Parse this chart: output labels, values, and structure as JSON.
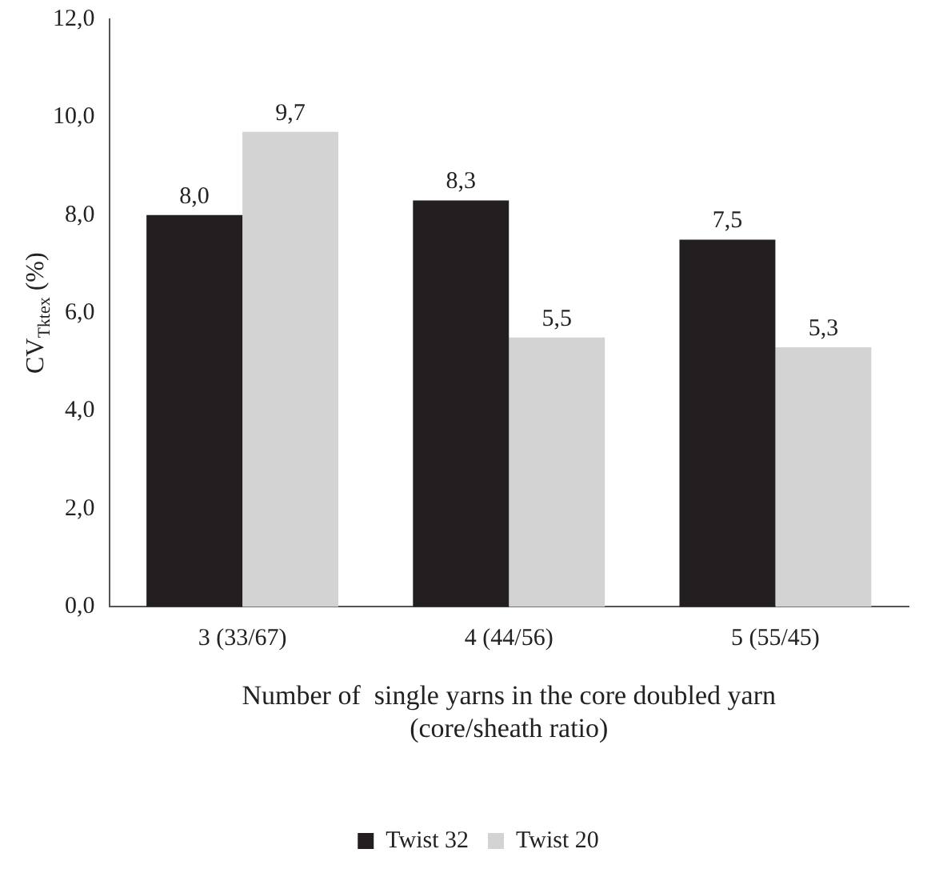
{
  "chart_data": {
    "type": "bar",
    "ylabel": "CV$_{Tktex}$ (%)",
    "xlabel": "Number of  single yarns in the core doubled yarn\n(core/sheath ratio)",
    "categories": [
      "3 (33/67)",
      "4 (44/56)",
      "5 (55/45)"
    ],
    "series": [
      {
        "name": "Twist 32",
        "color": "#231f20",
        "values": [
          8.0,
          8.3,
          7.5
        ],
        "value_labels": [
          "8,0",
          "8,3",
          "7,5"
        ]
      },
      {
        "name": "Twist 20",
        "color": "#d3d3d3",
        "values": [
          9.7,
          5.5,
          5.3
        ],
        "value_labels": [
          "9,7",
          "5,5",
          "5,3"
        ]
      }
    ],
    "ylim": [
      0,
      12
    ],
    "yticks": [
      {
        "value": 0,
        "label": "0,0"
      },
      {
        "value": 2,
        "label": "2,0"
      },
      {
        "value": 4,
        "label": "4,0"
      },
      {
        "value": 6,
        "label": "6,0"
      },
      {
        "value": 8,
        "label": "8,0"
      },
      {
        "value": 10,
        "label": "10,0"
      },
      {
        "value": 12,
        "label": "12,0"
      }
    ],
    "grid": false,
    "legend": "bottom"
  }
}
